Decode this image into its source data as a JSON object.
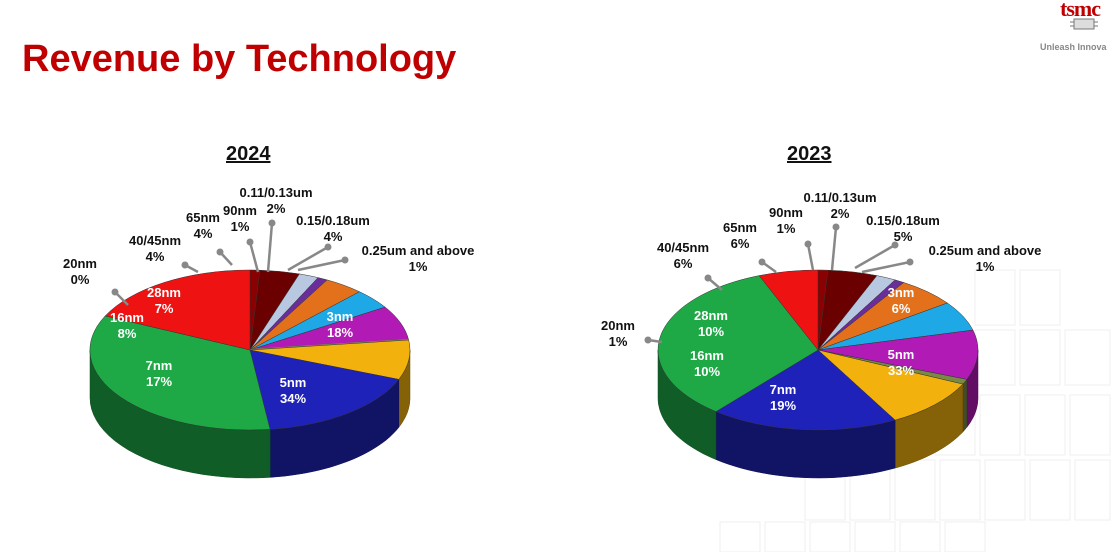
{
  "title": "Revenue by Technology",
  "logo": {
    "wordmark": "tsmc",
    "tagline": "Unleash Innova"
  },
  "colors": {
    "0.25um and above": "#8b0000",
    "0.15/0.18um": "#6b0000",
    "0.11/0.13um": "#b8c8e0",
    "90nm": "#6a2e9a",
    "65nm": "#e3701a",
    "40/45nm": "#1ea9e6",
    "28nm": "#b11ab5",
    "20nm": "#7a8a45",
    "16nm": "#f2b10c",
    "7nm": "#1e22b8",
    "5nm": "#1ea946",
    "3nm": "#ee1212"
  },
  "chart_data": [
    {
      "type": "pie",
      "title": "2024",
      "categories": [
        "0.25um and above",
        "0.15/0.18um",
        "0.11/0.13um",
        "90nm",
        "65nm",
        "40/45nm",
        "28nm",
        "20nm",
        "16nm",
        "7nm",
        "5nm",
        "3nm"
      ],
      "values": [
        1,
        4,
        2,
        1,
        4,
        4,
        7,
        0,
        8,
        17,
        34,
        18
      ],
      "labels": {
        "0.25um and above": [
          "0.25um and above",
          "1%"
        ],
        "0.15/0.18um": [
          "0.15/0.18um",
          "4%"
        ],
        "0.11/0.13um": [
          "0.11/0.13um",
          "2%"
        ],
        "90nm": [
          "90nm",
          "1%"
        ],
        "65nm": [
          "65nm",
          "4%"
        ],
        "40/45nm": [
          "40/45nm",
          "4%"
        ],
        "28nm": [
          "28nm",
          "7%"
        ],
        "20nm": [
          "20nm",
          "0%"
        ],
        "16nm": [
          "16nm",
          "8%"
        ],
        "7nm": [
          "7nm",
          "17%"
        ],
        "5nm": [
          "5nm",
          "34%"
        ],
        "3nm": [
          "3nm",
          "18%"
        ]
      }
    },
    {
      "type": "pie",
      "title": "2023",
      "categories": [
        "0.25um and above",
        "0.15/0.18um",
        "0.11/0.13um",
        "90nm",
        "65nm",
        "40/45nm",
        "28nm",
        "20nm",
        "16nm",
        "7nm",
        "5nm",
        "3nm"
      ],
      "values": [
        1,
        5,
        2,
        1,
        6,
        6,
        10,
        1,
        10,
        19,
        33,
        6
      ],
      "labels": {
        "0.25um and above": [
          "0.25um and above",
          "1%"
        ],
        "0.15/0.18um": [
          "0.15/0.18um",
          "5%"
        ],
        "0.11/0.13um": [
          "0.11/0.13um",
          "2%"
        ],
        "90nm": [
          "90nm",
          "1%"
        ],
        "65nm": [
          "65nm",
          "6%"
        ],
        "40/45nm": [
          "40/45nm",
          "6%"
        ],
        "28nm": [
          "28nm",
          "10%"
        ],
        "20nm": [
          "20nm",
          "1%"
        ],
        "16nm": [
          "16nm",
          "10%"
        ],
        "7nm": [
          "7nm",
          "19%"
        ],
        "5nm": [
          "5nm",
          "33%"
        ],
        "3nm": [
          "3nm",
          "6%"
        ]
      }
    }
  ]
}
